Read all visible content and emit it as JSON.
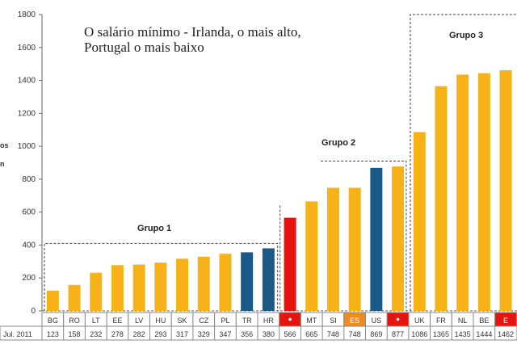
{
  "chart_data": {
    "type": "bar",
    "title_lines": [
      "O salário mínimo - Irlanda, o mais alto,",
      "Portugal o mais baixo"
    ],
    "ylabel_fragments": [
      "os",
      "n"
    ],
    "ylim": [
      0,
      1800
    ],
    "yticks": [
      0,
      200,
      400,
      600,
      800,
      1000,
      1200,
      1400,
      1600,
      1800
    ],
    "grid": false,
    "row_label": "Jul. 2011",
    "categories": [
      "BG",
      "RO",
      "LT",
      "EE",
      "LV",
      "HU",
      "SK",
      "CZ",
      "PL",
      "TR",
      "HR",
      "",
      "MT",
      "SI",
      "ES",
      "US",
      "",
      "UK",
      "FR",
      "NL",
      "BE",
      "E"
    ],
    "values": [
      123,
      158,
      232,
      278,
      282,
      293,
      317,
      329,
      347,
      356,
      380,
      566,
      665,
      748,
      748,
      869,
      877,
      1086,
      1365,
      1435,
      1444,
      1462
    ],
    "bar_colors": [
      "y",
      "y",
      "y",
      "y",
      "y",
      "y",
      "y",
      "y",
      "y",
      "b",
      "b",
      "r",
      "y",
      "y",
      "y",
      "b",
      "y",
      "y",
      "y",
      "y",
      "y",
      "y"
    ],
    "label_cell_colors": {
      "11": "r",
      "14": "o",
      "16": "r",
      "21": "r"
    },
    "colors": {
      "y": "#F7B217",
      "b": "#1B5A86",
      "r": "#E5140F",
      "o": "#F08C1E"
    },
    "groups": [
      {
        "label": "Grupo 1",
        "from": 0,
        "to": 10
      },
      {
        "label": "Grupo 2",
        "from": 13,
        "to": 16
      },
      {
        "label": "Grupo 3",
        "from": 17,
        "to": 21
      }
    ]
  }
}
